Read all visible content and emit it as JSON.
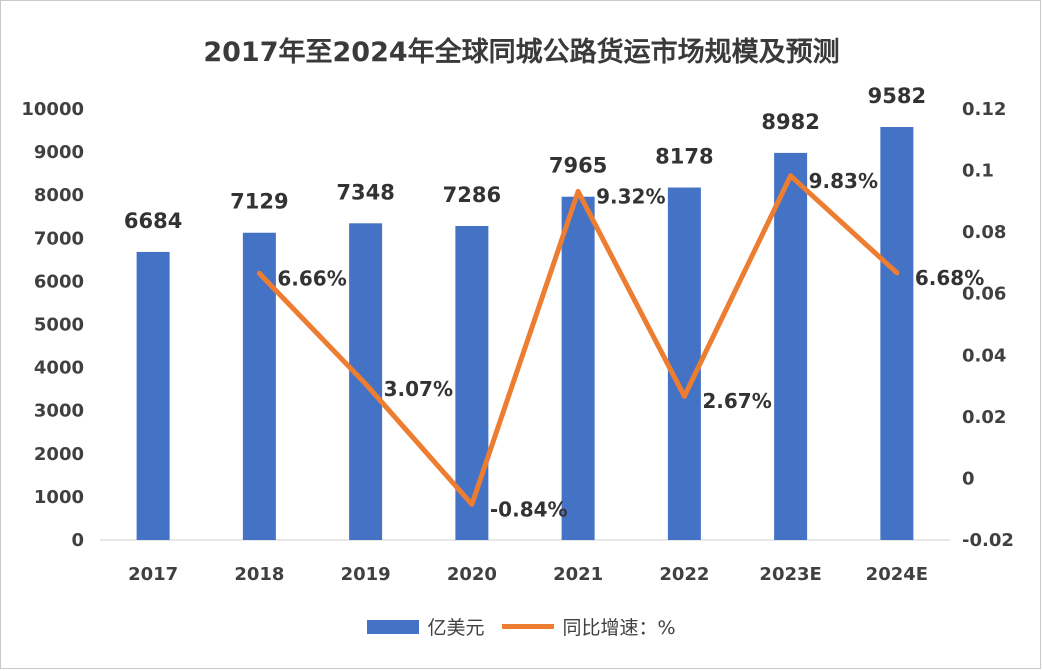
{
  "chart_data": {
    "type": "bar",
    "title": "2017年至2024年全球同城公路货运市场规模及预测",
    "categories": [
      "2017",
      "2018",
      "2019",
      "2020",
      "2021",
      "2022",
      "2023E",
      "2024E"
    ],
    "series": [
      {
        "name": "亿美元",
        "type": "bar",
        "axis": "left",
        "color": "#4472C4",
        "values": [
          6684,
          7129,
          7348,
          7286,
          7965,
          8178,
          8982,
          9582
        ],
        "labels": [
          "6684",
          "7129",
          "7348",
          "7286",
          "7965",
          "8178",
          "8982",
          "9582"
        ]
      },
      {
        "name": "同比增速：%",
        "type": "line",
        "axis": "right",
        "color": "#ED7D31",
        "values": [
          null,
          0.0666,
          0.0307,
          -0.0084,
          0.0932,
          0.0267,
          0.0983,
          0.0668
        ],
        "labels": [
          null,
          "6.66%",
          "3.07%",
          "-0.84%",
          "9.32%",
          "2.67%",
          "9.83%",
          "6.68%"
        ]
      }
    ],
    "y_left": {
      "min": 0,
      "max": 10000,
      "ticks": [
        "0",
        "1000",
        "2000",
        "3000",
        "4000",
        "5000",
        "6000",
        "7000",
        "8000",
        "9000",
        "10000"
      ]
    },
    "y_right": {
      "min": -0.02,
      "max": 0.12,
      "ticks": [
        "-0.02",
        "0",
        "0.02",
        "0.04",
        "0.06",
        "0.08",
        "0.1",
        "0.12"
      ]
    },
    "grid": false,
    "legend": "bottom"
  }
}
